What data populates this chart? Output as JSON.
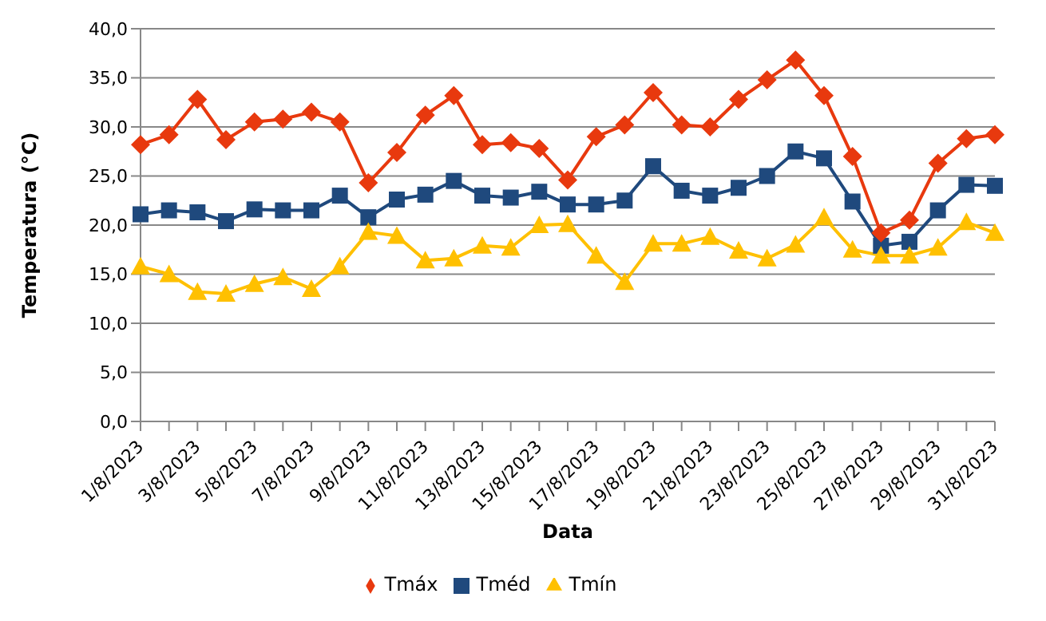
{
  "chart_data": {
    "type": "line",
    "xlabel": "Data",
    "ylabel": "Temperatura (°C)",
    "categories": [
      "1/8/2023",
      null,
      "3/8/2023",
      null,
      "5/8/2023",
      null,
      "7/8/2023",
      null,
      "9/8/2023",
      null,
      "11/8/2023",
      null,
      "13/8/2023",
      null,
      "15/8/2023",
      null,
      "17/8/2023",
      null,
      "19/8/2023",
      null,
      "21/8/2023",
      null,
      "23/8/2023",
      null,
      "25/8/2023",
      null,
      "27/8/2023",
      null,
      "29/8/2023",
      null,
      "31/8/2023"
    ],
    "series": [
      {
        "name": "Tméd",
        "color": "#1f497d",
        "marker": "square",
        "values": [
          21.1,
          21.5,
          21.3,
          20.4,
          21.6,
          21.5,
          21.5,
          23.0,
          20.8,
          22.6,
          23.1,
          24.5,
          23.0,
          22.8,
          23.4,
          22.1,
          22.1,
          22.5,
          26.0,
          23.5,
          23.0,
          23.8,
          25.0,
          27.5,
          26.8,
          22.4,
          17.9,
          18.3,
          21.5,
          24.1,
          24.0
        ]
      },
      {
        "name": "Tmáx",
        "color": "#e8390e",
        "marker": "diamond",
        "values": [
          28.2,
          29.2,
          32.8,
          28.7,
          30.5,
          30.8,
          31.5,
          30.5,
          24.3,
          27.4,
          31.2,
          33.2,
          28.2,
          28.4,
          27.8,
          24.6,
          29.0,
          30.2,
          33.5,
          30.2,
          30.0,
          32.8,
          34.8,
          36.8,
          33.2,
          27.0,
          19.2,
          20.5,
          26.3,
          28.8,
          29.2
        ]
      },
      {
        "name": "Tmín",
        "color": "#ffc000",
        "marker": "triangle",
        "values": [
          15.8,
          15.0,
          13.2,
          13.0,
          14.0,
          14.7,
          13.5,
          15.8,
          19.3,
          18.9,
          16.4,
          16.6,
          17.9,
          17.7,
          20.0,
          20.1,
          16.9,
          14.2,
          18.1,
          18.1,
          18.8,
          17.4,
          16.6,
          18.0,
          20.8,
          17.5,
          16.9,
          16.9,
          17.7,
          20.3,
          19.2
        ]
      }
    ],
    "ylim": [
      0,
      40
    ],
    "yticks": [
      {
        "value": 0,
        "label": "0,0"
      },
      {
        "value": 5,
        "label": "5,0"
      },
      {
        "value": 10,
        "label": "10,0"
      },
      {
        "value": 15,
        "label": "15,0"
      },
      {
        "value": 20,
        "label": "20,0"
      },
      {
        "value": 25,
        "label": "25,0"
      },
      {
        "value": 30,
        "label": "30,0"
      },
      {
        "value": 35,
        "label": "35,0"
      },
      {
        "value": 40,
        "label": "40,0"
      }
    ],
    "grid": "y",
    "legend": "bottom",
    "line_style": "solid"
  }
}
